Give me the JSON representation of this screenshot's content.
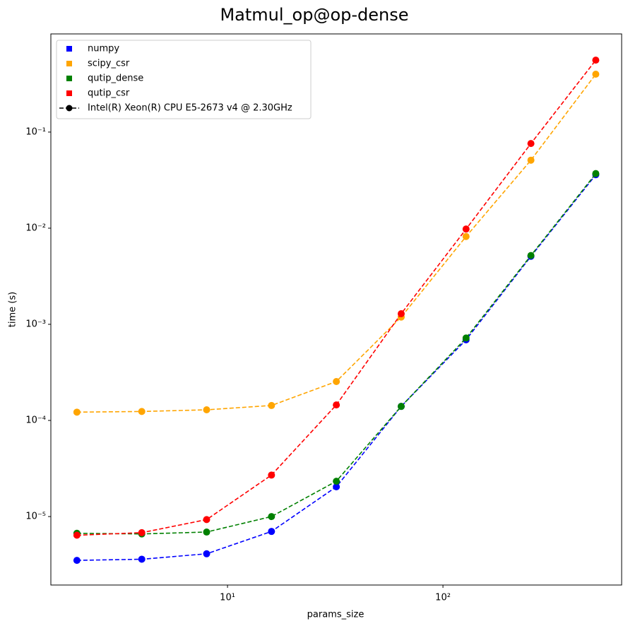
{
  "chart_data": {
    "type": "line",
    "title": "Matmul_op@op-dense",
    "x_label": "params_size",
    "y_label": "time (s)",
    "x": [
      2,
      4,
      8,
      16,
      32,
      64,
      128,
      256,
      512
    ],
    "xscale": "log",
    "yscale": "log",
    "xlim": [
      1.514,
      675
    ],
    "ylim": [
      1.94e-06,
      1.05
    ],
    "xticks": [
      {
        "value": 10,
        "label": "10¹"
      },
      {
        "value": 100,
        "label": "10²"
      }
    ],
    "yticks": [
      {
        "value": 1e-05,
        "label": "10⁻⁵"
      },
      {
        "value": 0.0001,
        "label": "10⁻⁴"
      },
      {
        "value": 0.001,
        "label": "10⁻³"
      },
      {
        "value": 0.01,
        "label": "10⁻²"
      },
      {
        "value": 0.1,
        "label": "10⁻¹"
      }
    ],
    "legend_loc": "upper left",
    "legend_note": "Intel(R) Xeon(R) CPU E5-2673 v4 @ 2.30GHz",
    "series": [
      {
        "name": "numpy",
        "color": "#0000ff",
        "values": [
          3.5e-06,
          3.6e-06,
          4.1e-06,
          7e-06,
          2.04e-05,
          0.00014,
          0.00069,
          0.0051,
          0.036
        ]
      },
      {
        "name": "scipy_csr",
        "color": "#ffa500",
        "values": [
          0.000122,
          0.000124,
          0.000129,
          0.000143,
          0.000254,
          0.00119,
          0.0082,
          0.051,
          0.4
        ]
      },
      {
        "name": "qutip_dense",
        "color": "#008000",
        "values": [
          6.7e-06,
          6.6e-06,
          6.9e-06,
          1e-05,
          2.33e-05,
          0.00014,
          0.00072,
          0.0052,
          0.037
        ]
      },
      {
        "name": "qutip_csr",
        "color": "#ff0000",
        "values": [
          6.4e-06,
          6.8e-06,
          9.3e-06,
          2.7e-05,
          0.000145,
          0.00129,
          0.0098,
          0.076,
          0.56
        ]
      }
    ]
  }
}
